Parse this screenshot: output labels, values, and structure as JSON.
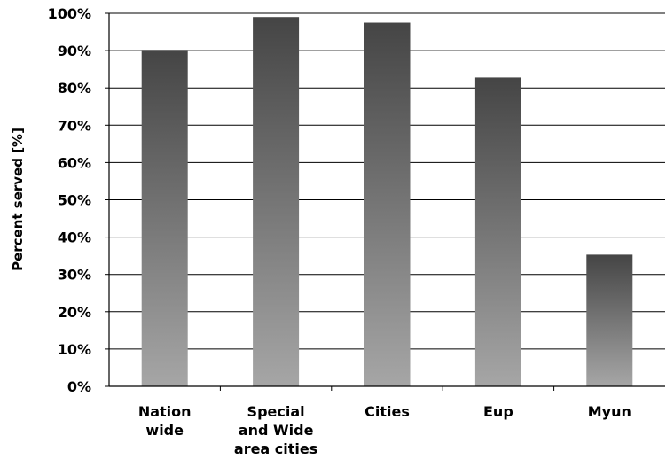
{
  "chart_data": {
    "type": "bar",
    "categories": [
      [
        "Nation",
        "wide"
      ],
      [
        "Special",
        "and Wide",
        "area cities"
      ],
      [
        "Cities"
      ],
      [
        "Eup"
      ],
      [
        "Myun"
      ]
    ],
    "values": [
      90.2,
      99.0,
      97.5,
      82.8,
      35.3
    ],
    "ylabel": "Percent served [%]",
    "xlabel": "",
    "title": "",
    "ylim": [
      0,
      100
    ],
    "yticks": [
      "0%",
      "10%",
      "20%",
      "30%",
      "40%",
      "50%",
      "60%",
      "70%",
      "80%",
      "90%",
      "100%"
    ],
    "grid": true,
    "colors": {
      "bar_top": "#454545",
      "bar_bottom": "#a6a6a6",
      "grid": "#000000",
      "text": "#000000"
    }
  }
}
